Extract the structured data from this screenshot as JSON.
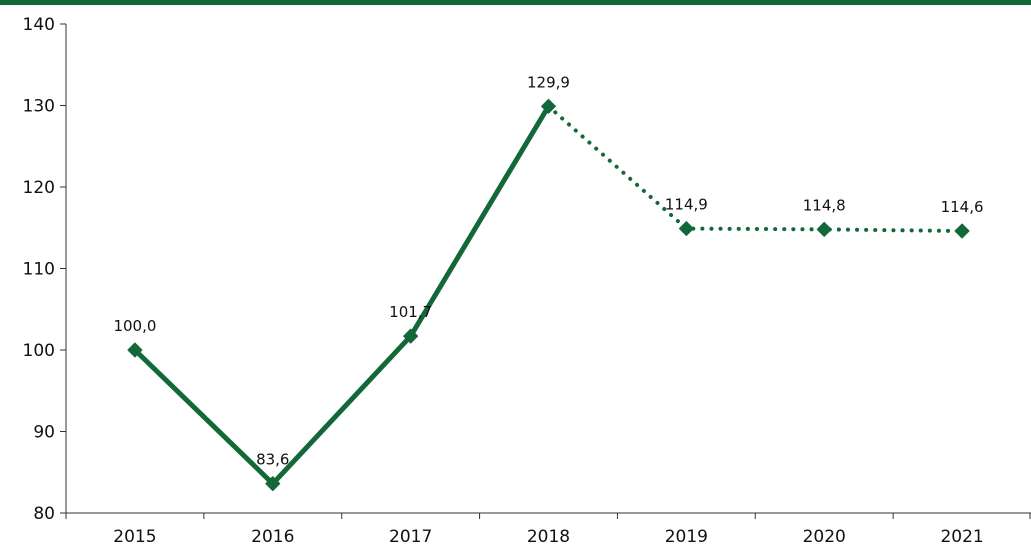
{
  "chart_data": {
    "type": "line",
    "title": "",
    "xlabel": "",
    "ylabel": "",
    "categories": [
      "2015",
      "2016",
      "2017",
      "2018",
      "2019",
      "2020",
      "2021"
    ],
    "series": [
      {
        "values": [
          100.0,
          83.6,
          101.7,
          129.9,
          114.9,
          114.8,
          114.6
        ],
        "labels": [
          "100,0",
          "83,6",
          "101,7",
          "129,9",
          "114,9",
          "114,8",
          "114,6"
        ],
        "solid_through_index": 3,
        "dotted_from_index": 3,
        "color": "#13683a",
        "marker": "diamond"
      }
    ],
    "ylim": [
      80,
      140
    ],
    "yticks": [
      80,
      90,
      100,
      110,
      120,
      130,
      140
    ],
    "ytick_labels": [
      "80",
      "90",
      "100",
      "110",
      "120",
      "130",
      "140"
    ],
    "grid": false,
    "legend": "none"
  },
  "colors": {
    "accent_bar": "#13683a",
    "line": "#13683a",
    "axis": "#333333"
  }
}
